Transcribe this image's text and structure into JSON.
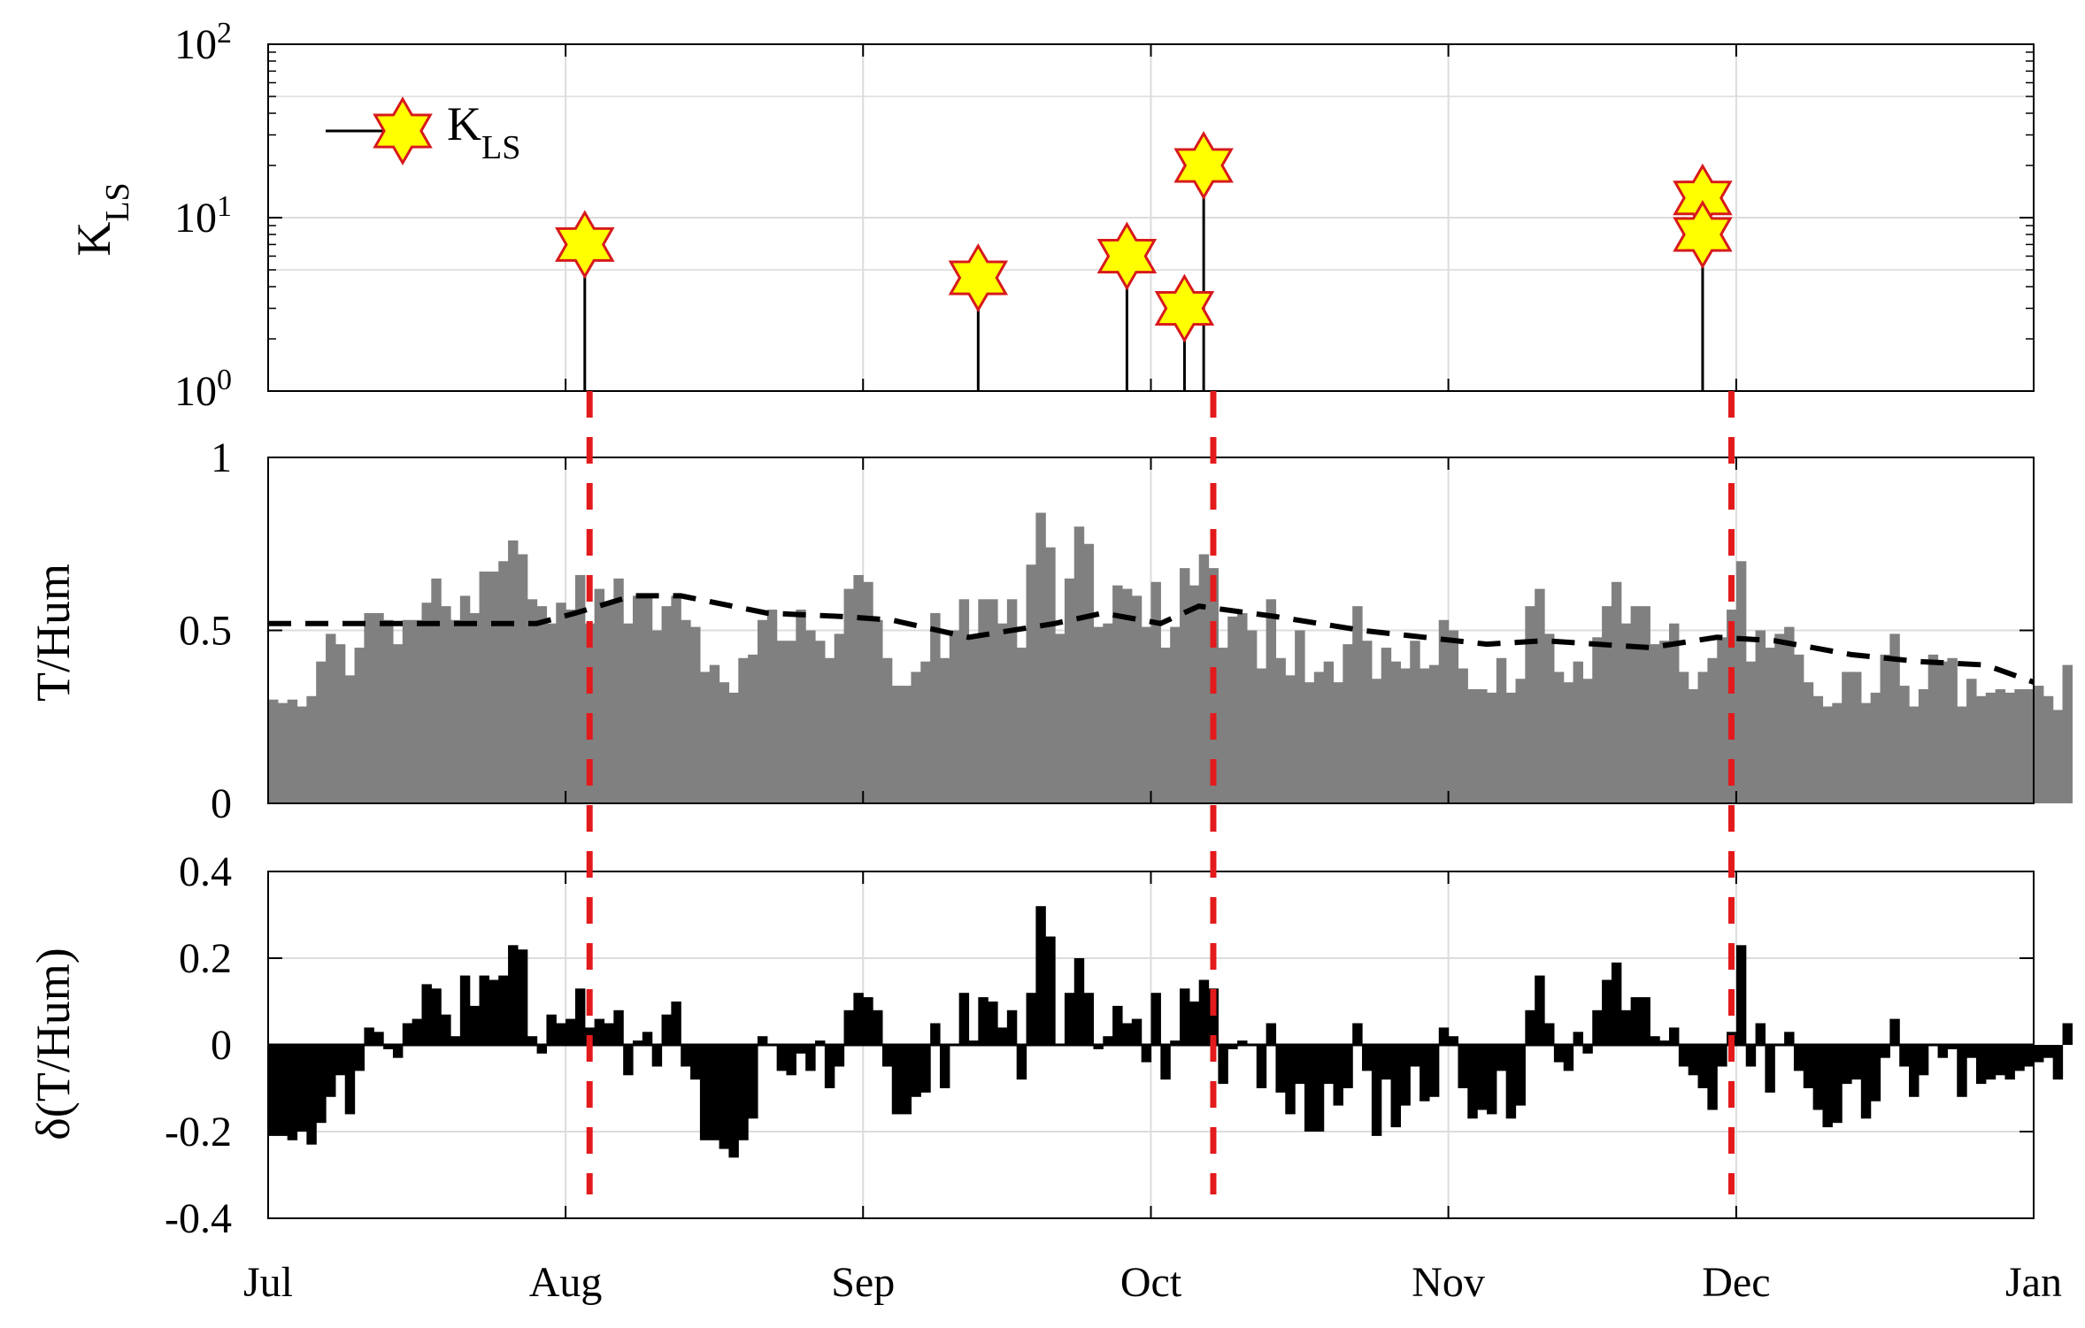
{
  "chart_data": [
    {
      "type": "stem",
      "panel": "top",
      "ylabel": "K",
      "ylabel_sub": "LS",
      "yscale": "log",
      "ylim": [
        1,
        100
      ],
      "yticks": [
        {
          "value": 1,
          "base": "10",
          "exp": "0"
        },
        {
          "value": 10,
          "base": "10",
          "exp": "1"
        },
        {
          "value": 100,
          "base": "10",
          "exp": "2"
        }
      ],
      "legend": {
        "label": "K",
        "sub": "LS",
        "position": "top-left"
      },
      "events": [
        {
          "day": 33,
          "value": 7
        },
        {
          "day": 74,
          "value": 4.5
        },
        {
          "day": 89.5,
          "value": 6
        },
        {
          "day": 95.5,
          "value": 3
        },
        {
          "day": 97.5,
          "value": 20
        },
        {
          "day": 149.5,
          "value": 13
        },
        {
          "day": 149.5,
          "value": 8
        }
      ]
    },
    {
      "type": "bar",
      "panel": "middle",
      "ylabel": "T/Hum",
      "ylim": [
        0,
        1
      ],
      "yticks": [
        "0",
        "0.5",
        "1"
      ],
      "values": [
        0.3,
        0.29,
        0.3,
        0.28,
        0.31,
        0.41,
        0.49,
        0.46,
        0.37,
        0.45,
        0.55,
        0.55,
        0.53,
        0.46,
        0.53,
        0.53,
        0.58,
        0.65,
        0.57,
        0.53,
        0.6,
        0.55,
        0.67,
        0.67,
        0.7,
        0.76,
        0.72,
        0.59,
        0.57,
        0.52,
        0.58,
        0.56,
        0.66,
        0.52,
        0.62,
        0.58,
        0.65,
        0.52,
        0.6,
        0.6,
        0.5,
        0.57,
        0.6,
        0.53,
        0.51,
        0.38,
        0.4,
        0.35,
        0.32,
        0.42,
        0.43,
        0.53,
        0.56,
        0.47,
        0.47,
        0.56,
        0.5,
        0.47,
        0.42,
        0.49,
        0.62,
        0.66,
        0.64,
        0.53,
        0.42,
        0.34,
        0.34,
        0.38,
        0.41,
        0.55,
        0.42,
        0.5,
        0.59,
        0.48,
        0.59,
        0.59,
        0.52,
        0.59,
        0.45,
        0.69,
        0.84,
        0.74,
        0.49,
        0.65,
        0.8,
        0.75,
        0.51,
        0.52,
        0.63,
        0.62,
        0.6,
        0.51,
        0.64,
        0.45,
        0.51,
        0.68,
        0.63,
        0.72,
        0.68,
        0.45,
        0.54,
        0.55,
        0.5,
        0.39,
        0.59,
        0.42,
        0.37,
        0.5,
        0.35,
        0.38,
        0.41,
        0.35,
        0.46,
        0.57,
        0.47,
        0.36,
        0.45,
        0.41,
        0.39,
        0.47,
        0.39,
        0.4,
        0.53,
        0.5,
        0.39,
        0.33,
        0.33,
        0.32,
        0.42,
        0.32,
        0.36,
        0.57,
        0.62,
        0.49,
        0.38,
        0.35,
        0.41,
        0.36,
        0.48,
        0.57,
        0.64,
        0.52,
        0.57,
        0.57,
        0.46,
        0.47,
        0.52,
        0.38,
        0.33,
        0.38,
        0.42,
        0.48,
        0.56,
        0.7,
        0.41,
        0.5,
        0.45,
        0.49,
        0.51,
        0.43,
        0.35,
        0.31,
        0.28,
        0.29,
        0.38,
        0.38,
        0.29,
        0.32,
        0.43,
        0.49,
        0.34,
        0.28,
        0.33,
        0.43,
        0.41,
        0.42,
        0.28,
        0.36,
        0.31,
        0.32,
        0.33,
        0.32,
        0.33,
        0.33,
        0.34,
        0.31,
        0.27,
        0.4
      ],
      "trend": [
        {
          "day": 0,
          "value": 0.52
        },
        {
          "day": 28,
          "value": 0.52
        },
        {
          "day": 32,
          "value": 0.55
        },
        {
          "day": 38,
          "value": 0.6
        },
        {
          "day": 43,
          "value": 0.6
        },
        {
          "day": 52,
          "value": 0.55
        },
        {
          "day": 60,
          "value": 0.54
        },
        {
          "day": 65,
          "value": 0.53
        },
        {
          "day": 73,
          "value": 0.48
        },
        {
          "day": 82,
          "value": 0.52
        },
        {
          "day": 87,
          "value": 0.55
        },
        {
          "day": 93,
          "value": 0.52
        },
        {
          "day": 97,
          "value": 0.57
        },
        {
          "day": 105,
          "value": 0.54
        },
        {
          "day": 114,
          "value": 0.5
        },
        {
          "day": 127,
          "value": 0.46
        },
        {
          "day": 133,
          "value": 0.47
        },
        {
          "day": 144,
          "value": 0.45
        },
        {
          "day": 151,
          "value": 0.48
        },
        {
          "day": 157,
          "value": 0.47
        },
        {
          "day": 165,
          "value": 0.43
        },
        {
          "day": 172,
          "value": 0.41
        },
        {
          "day": 179,
          "value": 0.4
        },
        {
          "day": 184,
          "value": 0.35
        }
      ]
    },
    {
      "type": "bar",
      "panel": "bottom",
      "ylabel": "δ(T/Hum)",
      "ylim": [
        -0.4,
        0.4
      ],
      "yticks": [
        "-0.4",
        "-0.2",
        "0",
        "0.2",
        "0.4"
      ],
      "values": [
        -0.21,
        -0.21,
        -0.22,
        -0.2,
        -0.23,
        -0.18,
        -0.12,
        -0.07,
        -0.16,
        -0.06,
        0.04,
        0.03,
        -0.01,
        -0.03,
        0.05,
        0.06,
        0.14,
        0.13,
        0.07,
        0.02,
        0.16,
        0.09,
        0.16,
        0.15,
        0.16,
        0.23,
        0.22,
        0.02,
        -0.02,
        0.07,
        0.05,
        0.06,
        0.13,
        0.04,
        0.06,
        0.05,
        0.08,
        -0.07,
        0.01,
        0.03,
        -0.05,
        0.07,
        0.1,
        -0.05,
        -0.08,
        -0.22,
        -0.22,
        -0.24,
        -0.26,
        -0.22,
        -0.17,
        0.02,
        0.0,
        -0.06,
        -0.07,
        -0.02,
        -0.06,
        0.01,
        -0.1,
        -0.05,
        0.08,
        0.12,
        0.11,
        0.08,
        -0.05,
        -0.16,
        -0.16,
        -0.12,
        -0.11,
        0.05,
        -0.1,
        0.0,
        0.12,
        0.01,
        0.11,
        0.1,
        0.04,
        0.08,
        -0.08,
        0.12,
        0.32,
        0.25,
        0.0,
        0.12,
        0.2,
        0.12,
        -0.01,
        0.02,
        0.09,
        0.05,
        0.06,
        -0.04,
        0.12,
        -0.08,
        0.01,
        0.13,
        0.1,
        0.15,
        0.13,
        -0.09,
        -0.01,
        0.01,
        0.0,
        -0.1,
        0.05,
        -0.11,
        -0.16,
        -0.09,
        -0.2,
        -0.2,
        -0.09,
        -0.14,
        -0.1,
        0.05,
        -0.06,
        -0.21,
        -0.08,
        -0.19,
        -0.14,
        -0.05,
        -0.13,
        -0.12,
        0.04,
        0.02,
        -0.1,
        -0.17,
        -0.15,
        -0.16,
        -0.06,
        -0.17,
        -0.14,
        0.08,
        0.16,
        0.05,
        -0.04,
        -0.06,
        0.03,
        -0.02,
        0.08,
        0.15,
        0.19,
        0.08,
        0.11,
        0.11,
        0.02,
        0.01,
        0.04,
        -0.05,
        -0.07,
        -0.1,
        -0.15,
        -0.05,
        0.03,
        0.23,
        -0.05,
        0.05,
        -0.11,
        0.0,
        0.03,
        -0.06,
        -0.1,
        -0.15,
        -0.19,
        -0.18,
        -0.09,
        -0.08,
        -0.17,
        -0.13,
        -0.03,
        0.06,
        -0.05,
        -0.12,
        -0.07,
        0.0,
        -0.03,
        -0.01,
        -0.12,
        -0.03,
        -0.09,
        -0.08,
        -0.07,
        -0.08,
        -0.06,
        -0.05,
        -0.04,
        -0.03,
        -0.08,
        0.05
      ]
    }
  ],
  "xaxis": {
    "range_days": [
      0,
      184
    ],
    "months": [
      {
        "label": "Jul",
        "day": 0
      },
      {
        "label": "Aug",
        "day": 31
      },
      {
        "label": "Sep",
        "day": 62
      },
      {
        "label": "Oct",
        "day": 92
      },
      {
        "label": "Nov",
        "day": 123
      },
      {
        "label": "Dec",
        "day": 153
      },
      {
        "label": "Jan",
        "day": 184
      }
    ]
  },
  "event_lines": [
    33.5,
    98.5,
    152.5
  ],
  "colors": {
    "bar_gray": "#808080",
    "bar_black": "#000000",
    "event_line": "#e31a1c",
    "star_fill": "#ffff00",
    "star_edge": "#d7191c",
    "grid": "#dcdcdc"
  }
}
